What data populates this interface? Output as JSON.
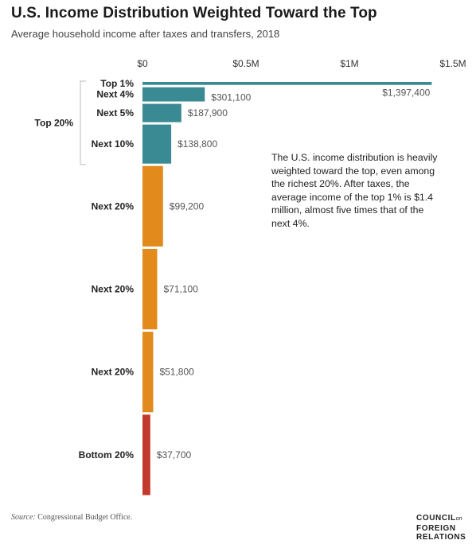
{
  "title": "U.S. Income Distribution Weighted Toward the Top",
  "subtitle": "Average household income after taxes and transfers, 2018",
  "annotation": "The U.S. income distribution is heavily weighted toward the top, even among the richest 20%. After taxes, the average income of the top 1% is $1.4 million, almost five times that of the next 4%.",
  "source_label": "Source:",
  "source_text": "Congressional Budget Office.",
  "brand": {
    "line1": "COUNCIL",
    "line1_small": "on",
    "line2": "FOREIGN",
    "line3": "RELATIONS"
  },
  "colors": {
    "top20": "#3a8a94",
    "middle": "#e28a1c",
    "bottom": "#c33a2c",
    "bracket": "#bbbbbb"
  },
  "chart_data": {
    "type": "bar",
    "orientation": "horizontal",
    "bar_width_encodes": "population share",
    "xlim": [
      0,
      1500000
    ],
    "xticks": [
      {
        "value": 0,
        "label": "$0"
      },
      {
        "value": 500000,
        "label": "$0.5M"
      },
      {
        "value": 1000000,
        "label": "$1M"
      },
      {
        "value": 1500000,
        "label": "$1.5M"
      }
    ],
    "group_label": "Top 20%",
    "bars": [
      {
        "category": "Top 1%",
        "share": 1,
        "value": 1397400,
        "value_label": "$1,397,400",
        "group": "top20"
      },
      {
        "category": "Next 4%",
        "share": 4,
        "value": 301100,
        "value_label": "$301,100",
        "group": "top20"
      },
      {
        "category": "Next 5%",
        "share": 5,
        "value": 187900,
        "value_label": "$187,900",
        "group": "top20"
      },
      {
        "category": "Next 10%",
        "share": 10,
        "value": 138800,
        "value_label": "$138,800",
        "group": "top20"
      },
      {
        "category": "Next 20%",
        "share": 20,
        "value": 99200,
        "value_label": "$99,200",
        "group": "middle"
      },
      {
        "category": "Next 20%",
        "share": 20,
        "value": 71100,
        "value_label": "$71,100",
        "group": "middle"
      },
      {
        "category": "Next 20%",
        "share": 20,
        "value": 51800,
        "value_label": "$51,800",
        "group": "middle"
      },
      {
        "category": "Bottom 20%",
        "share": 20,
        "value": 37700,
        "value_label": "$37,700",
        "group": "bottom"
      }
    ]
  }
}
